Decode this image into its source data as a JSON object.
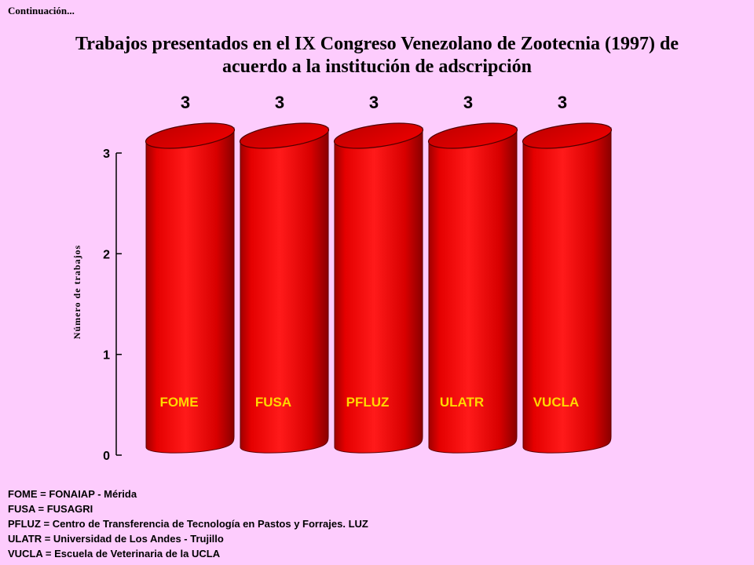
{
  "header": {
    "continuation": "Continuación...",
    "title_line1": "Trabajos presentados en el IX Congreso Venezolano de Zootecnia (1997) de",
    "title_line2": "acuerdo a la institución de adscripción"
  },
  "chart_data": {
    "type": "bar",
    "categories": [
      "FOME",
      "FUSA",
      "PFLUZ",
      "ULATR",
      "VUCLA"
    ],
    "values": [
      3,
      3,
      3,
      3,
      3
    ],
    "data_labels": [
      "3",
      "3",
      "3",
      "3",
      "3"
    ],
    "ylabel": "Número de trabajos",
    "xlabel": "",
    "ylim": [
      0,
      3
    ],
    "yticks": [
      "0",
      "1",
      "2",
      "3"
    ],
    "grid": false,
    "bar_color": "#e00000",
    "category_label_color": "#ffd700"
  },
  "legend": {
    "items": [
      "FOME = FONAIAP - Mérida",
      "FUSA = FUSAGRI",
      "PFLUZ = Centro de Transferencia de Tecnología en Pastos y Forrajes. LUZ",
      "ULATR = Universidad de Los Andes -  Trujillo",
      "VUCLA = Escuela de Veterinaria de la UCLA"
    ]
  }
}
